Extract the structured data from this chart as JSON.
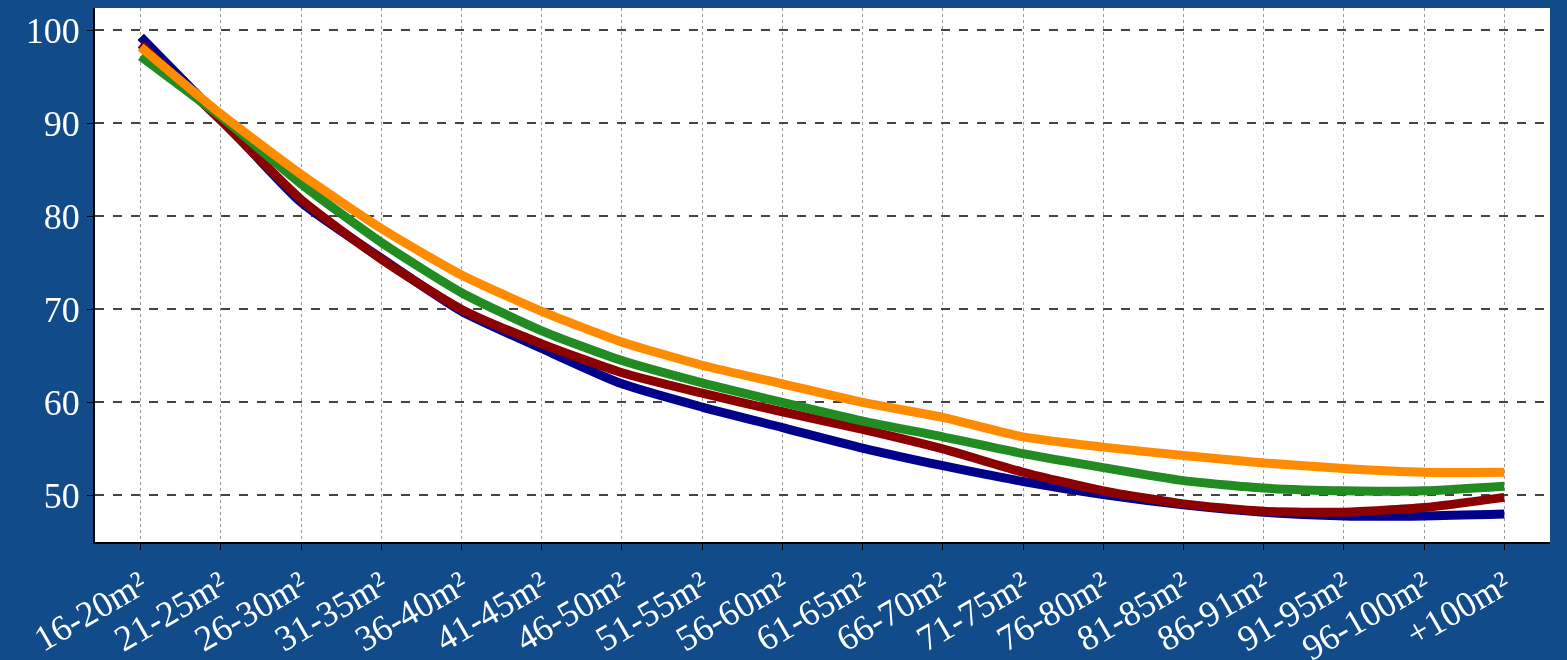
{
  "chart_data": {
    "type": "line",
    "categories": [
      "16-20m²",
      "21-25m²",
      "26-30m²",
      "31-35m²",
      "36-40m²",
      "41-45m²",
      "46-50m²",
      "51-55m²",
      "56-60m²",
      "61-65m²",
      "66-70m²",
      "71-75m²",
      "76-80m²",
      "81-85m²",
      "86-91m²",
      "91-95m²",
      "96-100m²",
      "+100m²"
    ],
    "series": [
      {
        "color": "#00008b",
        "values": [
          99.3,
          90.5,
          81.5,
          75.5,
          69.8,
          65.8,
          62,
          59.5,
          57.3,
          55.1,
          53.2,
          51.5,
          50.1,
          49,
          48.2,
          47.8,
          47.8,
          48
        ]
      },
      {
        "color": "#8b0000",
        "values": [
          98.5,
          90.3,
          81.8,
          75.4,
          70,
          66.3,
          63.2,
          61,
          59,
          57.1,
          55,
          52.5,
          50.5,
          49.1,
          48.3,
          48.2,
          48.7,
          49.8
        ]
      },
      {
        "color": "#228b22",
        "values": [
          97.2,
          90.7,
          83.5,
          77.2,
          71.8,
          67.7,
          64.5,
          62.1,
          60,
          58,
          56.3,
          54.5,
          53,
          51.6,
          50.8,
          50.5,
          50.5,
          51
        ]
      },
      {
        "color": "#ff8c00",
        "values": [
          98.2,
          91,
          84.5,
          78.7,
          73.7,
          69.8,
          66.5,
          64,
          62,
          60,
          58.4,
          56.3,
          55.2,
          54.3,
          53.5,
          52.9,
          52.5,
          52.5
        ]
      }
    ],
    "ylim": [
      45,
      102.4
    ],
    "yticks": [
      50,
      60,
      70,
      80,
      90,
      100
    ],
    "grid": true,
    "marker": "none",
    "line_style": "solid"
  }
}
